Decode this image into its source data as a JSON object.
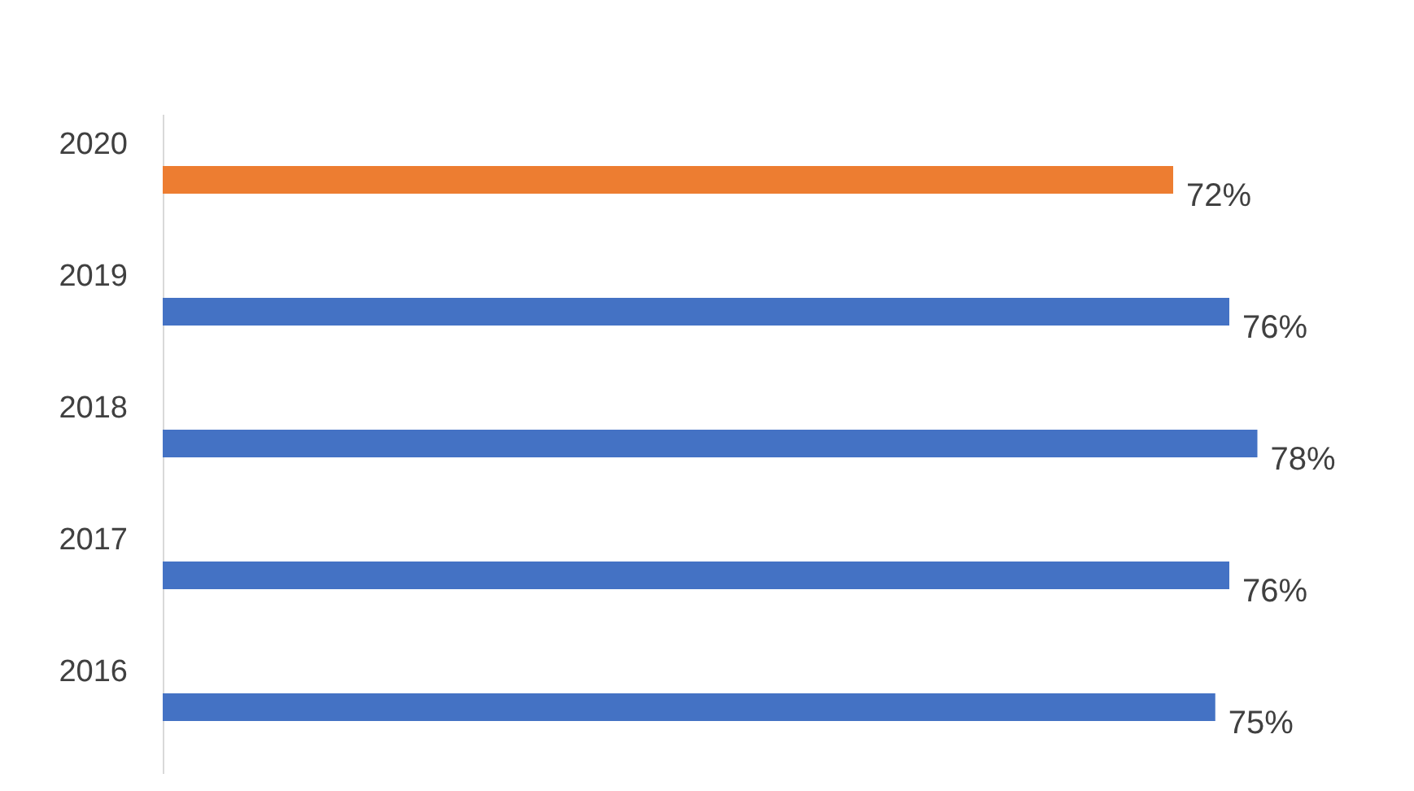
{
  "chart_data": {
    "type": "bar",
    "orientation": "horizontal",
    "categories": [
      "2020",
      "2019",
      "2018",
      "2017",
      "2016"
    ],
    "values": [
      72,
      76,
      78,
      76,
      75
    ],
    "colors": [
      "#ed7d31",
      "#4472c4",
      "#4472c4",
      "#4472c4",
      "#4472c4"
    ],
    "value_labels": [
      "72%",
      "76%",
      "78%",
      "76%",
      "75%"
    ]
  }
}
